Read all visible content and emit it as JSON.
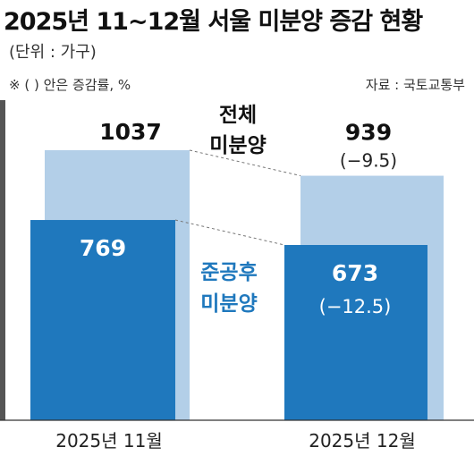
{
  "header": {
    "title": "2025년 11~12월 서울 미분양 증감 현황",
    "unit": "(단위 : 가구)",
    "note": "※ (   ) 안은 증감률, %",
    "source": "자료 : 국토교통부"
  },
  "chart_data": {
    "type": "bar",
    "categories": [
      "2025년 11월",
      "2025년 12월"
    ],
    "series": [
      {
        "name": "전체 미분양",
        "values": [
          1037,
          939
        ],
        "value_labels": [
          "1037",
          "939"
        ],
        "change_labels": [
          "",
          "(−9.5)"
        ],
        "color": "#b3cfe8"
      },
      {
        "name": "준공후 미분양",
        "values": [
          769,
          673
        ],
        "value_labels": [
          "769",
          "673"
        ],
        "change_labels": [
          "",
          "(−12.5)"
        ],
        "color": "#1f78bd"
      }
    ],
    "series_labels": {
      "total": [
        "전체",
        "미분양"
      ],
      "completed": [
        "준공후",
        "미분양"
      ]
    },
    "ylim": [
      0,
      1250
    ],
    "grid": false,
    "legend": "inline"
  }
}
